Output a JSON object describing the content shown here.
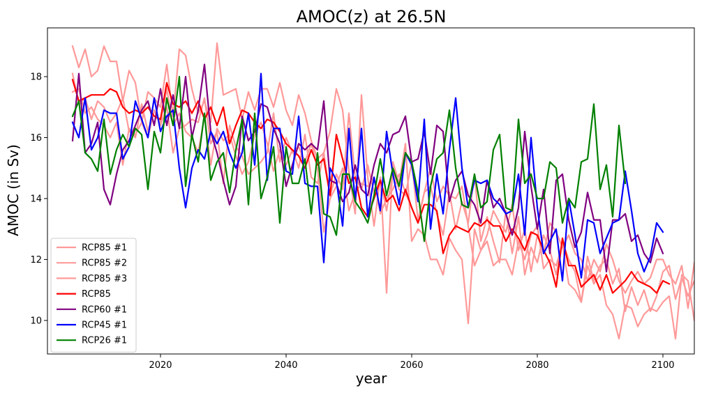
{
  "chart_data": {
    "type": "line",
    "title": "AMOC(z) at 26.5N",
    "xlabel": "year",
    "ylabel": "AMOC (in Sv)",
    "xlim": [
      2002,
      2105
    ],
    "ylim": [
      8.9,
      19.6
    ],
    "xticks": [
      2020,
      2040,
      2060,
      2080,
      2100
    ],
    "yticks": [
      10,
      12,
      14,
      16,
      18
    ],
    "grid": false,
    "legend_position": "lower-left",
    "x_start": 2006,
    "series": [
      {
        "name": "RCP85 #1",
        "color": "#ff9999",
        "values": [
          18.1,
          17.1,
          17.3,
          16.6,
          17.2,
          17.0,
          16.5,
          16.8,
          17.3,
          16.2,
          16.1,
          16.5,
          16.0,
          16.9,
          16.5,
          17.6,
          16.4,
          16.8,
          16.2,
          16.0,
          15.5,
          16.7,
          15.1,
          16.3,
          15.9,
          16.1,
          15.4,
          14.8,
          15.2,
          16.1,
          16.5,
          15.8,
          14.9,
          15.6,
          15.1,
          15.6,
          15.0,
          16.1,
          14.7,
          14.5,
          15.5,
          14.1,
          14.8,
          14.3,
          16.8,
          14.7,
          14.3,
          15.1,
          14.2,
          14.6,
          13.6,
          14.9,
          14.3,
          14.1,
          15.2,
          13.3,
          14.2,
          14.4,
          13.5,
          12.8,
          14.2,
          13.0,
          13.9,
          13.2,
          14.8,
          12.6,
          13.4,
          12.6,
          11.9,
          13.6,
          12.2,
          13.4,
          11.5,
          12.4,
          11.9,
          12.8,
          12.3,
          11.5,
          12.6,
          12.0,
          11.6,
          10.6,
          12.1,
          11.3,
          11.8,
          12.0,
          11.2,
          11.7,
          10.3,
          11.1,
          10.5,
          11.0,
          10.3,
          10.8,
          11.6,
          11.8,
          10.7,
          11.4,
          10.8,
          11.3,
          11.0
        ]
      },
      {
        "name": "RCP85 #2",
        "color": "#ff9999",
        "values": [
          19.0,
          18.3,
          18.9,
          18.0,
          18.2,
          19.0,
          18.5,
          18.5,
          17.2,
          18.2,
          17.8,
          16.5,
          17.5,
          17.3,
          17.0,
          18.4,
          16.7,
          18.9,
          18.7,
          17.6,
          16.8,
          17.2,
          16.5,
          19.1,
          17.4,
          17.5,
          17.6,
          16.6,
          17.5,
          16.9,
          17.6,
          17.6,
          17.0,
          17.8,
          16.9,
          16.4,
          17.4,
          16.8,
          15.9,
          15.3,
          15.5,
          16.2,
          17.6,
          16.9,
          14.9,
          13.5,
          17.4,
          14.7,
          13.1,
          14.7,
          10.9,
          15.2,
          14.5,
          15.8,
          12.6,
          13.0,
          12.8,
          12.0,
          12.0,
          11.5,
          12.7,
          12.3,
          12.0,
          9.9,
          13.0,
          12.3,
          12.6,
          11.8,
          12.0,
          12.0,
          11.5,
          12.6,
          12.0,
          12.8,
          13.1,
          11.7,
          12.0,
          11.8,
          12.5,
          11.2,
          11.0,
          10.6,
          11.8,
          11.2,
          11.5,
          10.5,
          10.2,
          9.4,
          10.5,
          10.4,
          9.8,
          10.2,
          10.4,
          10.3,
          10.6,
          10.8,
          9.4,
          11.5,
          11.3,
          10.0,
          11.6
        ]
      },
      {
        "name": "RCP85 #3",
        "color": "#ff9999",
        "values": [
          17.5,
          17.6,
          16.8,
          17.0,
          16.6,
          16.4,
          16.0,
          16.5,
          15.1,
          16.3,
          16.0,
          17.1,
          16.2,
          16.9,
          16.4,
          17.0,
          15.5,
          16.3,
          16.4,
          16.6,
          16.5,
          17.3,
          15.8,
          16.2,
          14.5,
          16.4,
          15.7,
          15.4,
          14.8,
          15.0,
          15.2,
          15.5,
          16.8,
          15.2,
          16.0,
          15.5,
          15.7,
          15.2,
          15.8,
          15.0,
          12.9,
          14.0,
          14.4,
          15.0,
          13.6,
          14.2,
          14.5,
          14.4,
          14.7,
          13.5,
          14.0,
          14.3,
          14.8,
          14.2,
          13.7,
          13.2,
          14.2,
          15.0,
          13.9,
          14.4,
          14.1,
          14.0,
          14.4,
          13.1,
          11.8,
          12.3,
          12.8,
          13.6,
          13.2,
          12.9,
          13.8,
          12.3,
          13.0,
          11.6,
          12.8,
          12.2,
          13.2,
          12.9,
          12.4,
          12.8,
          12.2,
          12.0,
          11.3,
          12.0,
          11.6,
          12.5,
          12.0,
          11.3,
          10.9,
          11.3,
          11.6,
          11.2,
          11.4,
          12.0,
          12.0,
          11.5,
          11.2,
          11.8,
          10.4,
          11.9,
          11.1
        ]
      },
      {
        "name": "RCP85",
        "color": "#ff0000",
        "values": [
          17.9,
          17.2,
          17.3,
          17.4,
          17.4,
          17.4,
          17.6,
          17.5,
          17.0,
          16.8,
          16.9,
          16.8,
          17.0,
          16.7,
          16.6,
          17.8,
          17.1,
          17.0,
          17.2,
          16.8,
          17.2,
          16.6,
          17.0,
          16.4,
          17.0,
          15.8,
          16.4,
          16.9,
          16.8,
          16.5,
          16.3,
          16.6,
          16.5,
          16.2,
          15.8,
          15.6,
          15.4,
          15.0,
          15.6,
          15.1,
          15.3,
          14.1,
          16.1,
          15.3,
          14.5,
          14.7,
          13.7,
          13.4,
          14.0,
          14.6,
          13.9,
          14.1,
          13.6,
          14.3,
          13.7,
          13.2,
          13.8,
          13.8,
          13.6,
          12.2,
          12.8,
          13.1,
          13.0,
          12.9,
          13.2,
          13.1,
          13.3,
          13.1,
          13.1,
          12.6,
          13.0,
          12.7,
          12.3,
          12.9,
          12.8,
          12.3,
          11.9,
          11.1,
          12.7,
          11.8,
          11.8,
          11.1,
          11.3,
          11.5,
          11.0,
          11.5,
          10.9,
          11.1,
          11.3,
          11.6,
          11.3,
          11.2,
          11.1,
          10.9,
          11.3,
          11.2
        ]
      },
      {
        "name": "RCP60 #1",
        "color": "#800080",
        "values": [
          15.9,
          18.1,
          15.5,
          15.8,
          16.5,
          14.3,
          13.8,
          14.8,
          15.6,
          15.9,
          16.4,
          16.9,
          17.2,
          16.4,
          17.6,
          16.4,
          17.4,
          16.3,
          18.0,
          16.0,
          16.9,
          18.4,
          16.2,
          15.5,
          14.6,
          13.8,
          14.4,
          16.7,
          15.9,
          16.2,
          17.1,
          17.0,
          16.3,
          15.8,
          14.4,
          15.1,
          15.8,
          15.6,
          15.8,
          15.6,
          17.2,
          14.6,
          14.5,
          13.9,
          14.2,
          15.1,
          14.3,
          14.1,
          15.1,
          15.8,
          15.5,
          16.1,
          16.2,
          16.7,
          15.2,
          15.3,
          16.2,
          14.8,
          16.4,
          16.2,
          13.9,
          14.6,
          14.9,
          14.1,
          13.8,
          13.2,
          14.6,
          13.7,
          14.0,
          13.5,
          12.8,
          13.7,
          16.2,
          14.4,
          13.0,
          14.3,
          12.2,
          14.6,
          14.8,
          13.3,
          12.4,
          12.9,
          14.2,
          13.3,
          13.3,
          11.6,
          13.3,
          13.3,
          13.5,
          12.6,
          12.8,
          12.2,
          11.9,
          12.7,
          12.2
        ]
      },
      {
        "name": "RCP45 #1",
        "color": "#0000ff",
        "values": [
          16.5,
          16.0,
          17.3,
          15.6,
          16.0,
          16.9,
          16.8,
          16.8,
          15.3,
          15.7,
          17.2,
          16.6,
          16.0,
          17.3,
          16.2,
          16.7,
          16.9,
          15.0,
          13.7,
          15.0,
          15.6,
          15.3,
          16.2,
          15.8,
          16.2,
          15.5,
          15.0,
          15.5,
          16.8,
          15.1,
          18.1,
          14.6,
          16.3,
          16.3,
          14.9,
          14.8,
          16.7,
          14.5,
          14.4,
          14.4,
          11.9,
          15.0,
          14.6,
          13.1,
          16.3,
          13.9,
          16.3,
          13.4,
          14.7,
          13.6,
          16.2,
          14.8,
          13.8,
          15.5,
          15.1,
          13.9,
          16.6,
          13.0,
          14.8,
          13.5,
          15.6,
          17.3,
          15.0,
          13.7,
          14.6,
          14.5,
          14.6,
          14.0,
          13.8,
          13.5,
          13.6,
          14.8,
          12.8,
          16.0,
          13.7,
          12.2,
          12.6,
          13.0,
          11.3,
          14.0,
          12.8,
          11.4,
          13.3,
          13.2,
          12.2,
          12.7,
          13.2,
          13.3,
          14.9,
          13.6,
          12.2,
          11.6,
          12.1,
          13.2,
          12.9
        ]
      },
      {
        "name": "RCP26 #1",
        "color": "#008000",
        "values": [
          16.7,
          17.2,
          15.5,
          15.3,
          14.9,
          16.6,
          14.8,
          15.6,
          16.1,
          15.7,
          16.3,
          16.1,
          14.3,
          16.2,
          15.5,
          17.3,
          16.4,
          18.0,
          14.4,
          16.1,
          15.2,
          16.8,
          14.6,
          15.2,
          15.5,
          14.2,
          15.6,
          16.6,
          13.8,
          16.8,
          14.0,
          14.7,
          15.7,
          13.2,
          15.7,
          14.5,
          14.5,
          15.3,
          13.5,
          15.5,
          13.5,
          13.4,
          12.8,
          14.8,
          14.8,
          13.9,
          13.6,
          13.2,
          14.1,
          15.3,
          14.1,
          15.0,
          14.4,
          15.5,
          15.2,
          14.2,
          12.6,
          14.4,
          15.3,
          15.5,
          16.9,
          15.0,
          13.8,
          13.7,
          14.8,
          13.7,
          13.9,
          15.6,
          16.1,
          13.7,
          13.6,
          16.6,
          14.5,
          14.8,
          14.0,
          14.0,
          15.2,
          15.0,
          13.2,
          14.0,
          13.7,
          15.2,
          15.3,
          17.1,
          14.3,
          15.1,
          13.4,
          16.4,
          14.5
        ]
      }
    ]
  }
}
